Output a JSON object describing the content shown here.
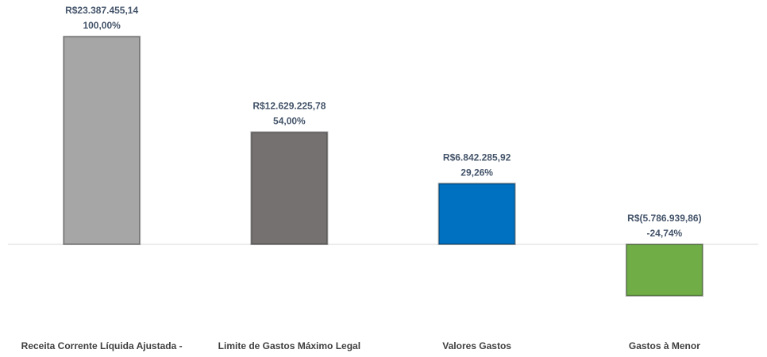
{
  "chart_data": {
    "type": "bar",
    "categories": [
      "Receita Corrente Líquida Ajustada -",
      "Limite de Gastos Máximo Legal",
      "Valores Gastos",
      "Gastos à Menor"
    ],
    "values": [
      23387455.14,
      12629225.78,
      6842285.92,
      -5786939.86
    ],
    "value_labels": [
      "R$23.387.455,14",
      "R$12.629.225,78",
      "R$6.842.285,92",
      "R$(5.786.939,86)"
    ],
    "percent_labels": [
      "100,00%",
      "54,00%",
      "29,26%",
      "-24,74%"
    ],
    "colors": [
      "#a6a6a6",
      "#767171",
      "#0070c0",
      "#70ad47"
    ],
    "ylim": [
      -8000000,
      27500000
    ]
  }
}
